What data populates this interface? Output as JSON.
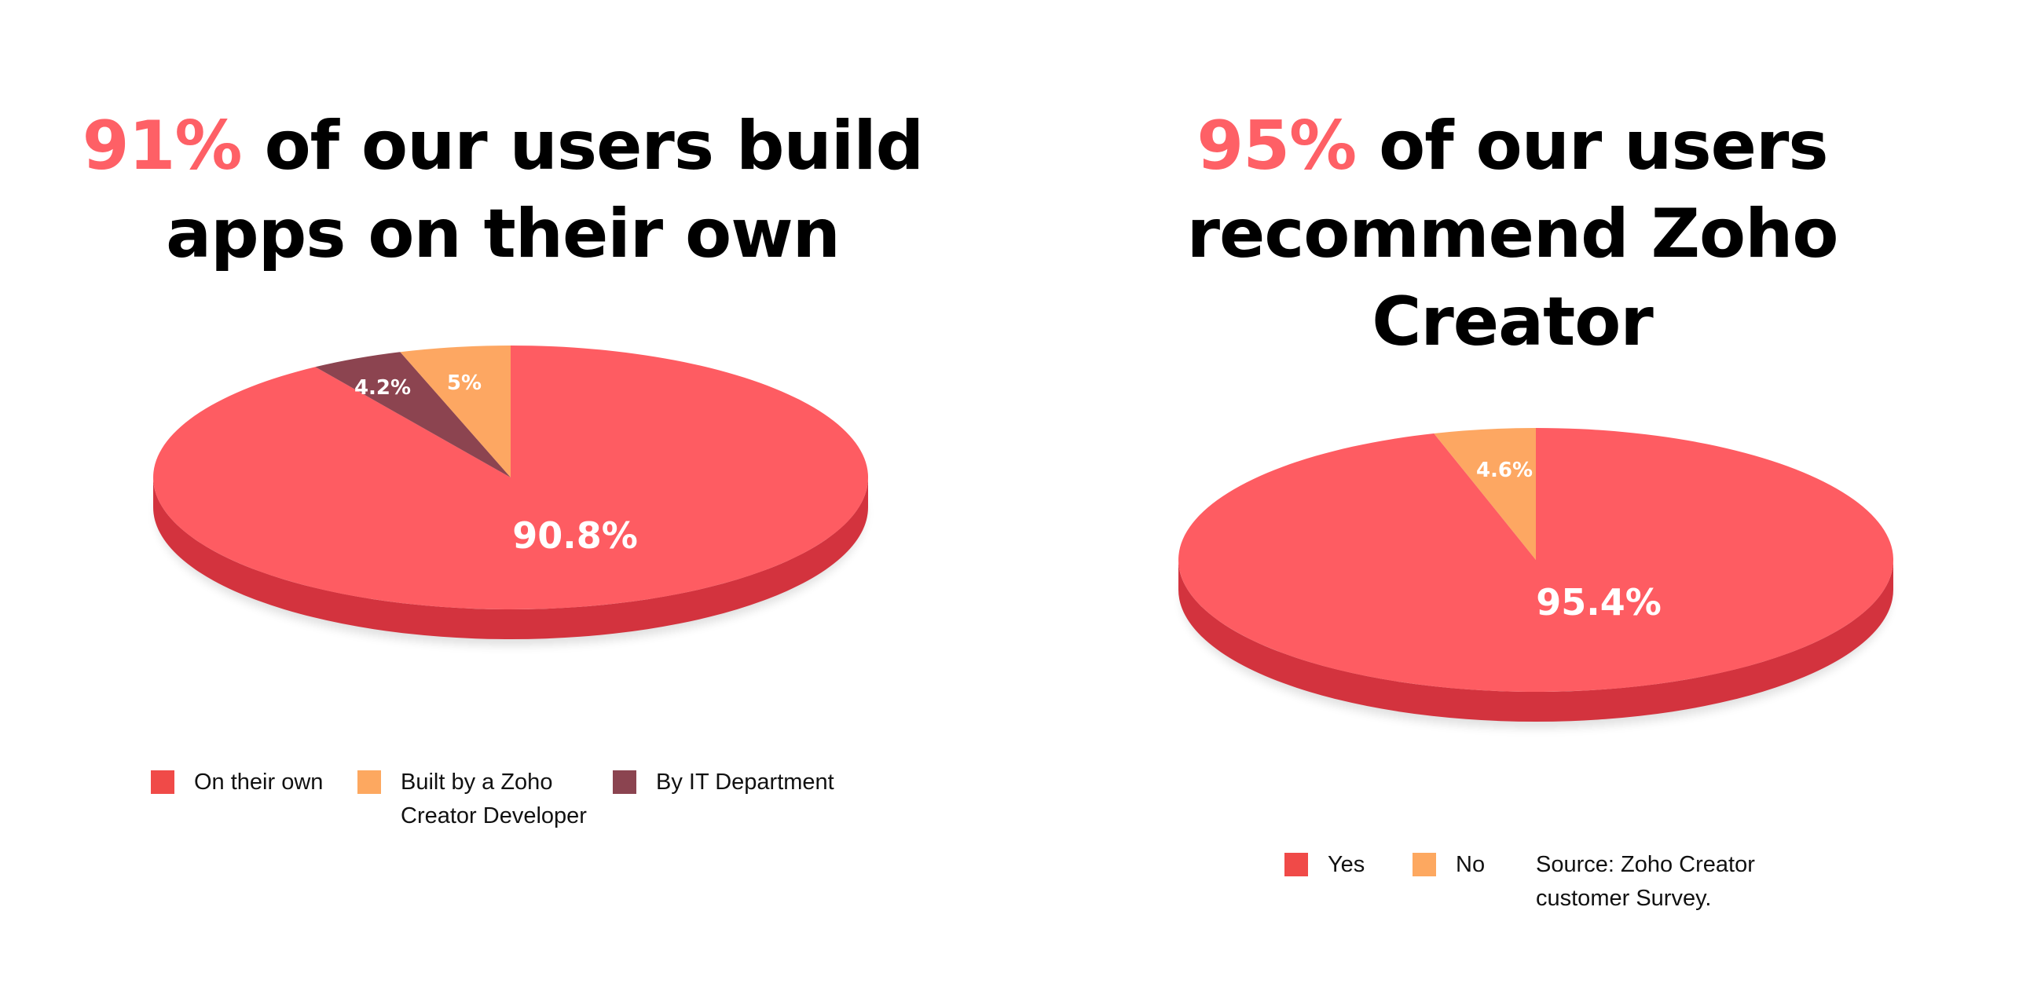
{
  "left_panel": {
    "headline_accent": "91%",
    "headline_line1": "of our users build",
    "headline_line2": "apps on their own"
  },
  "right_panel": {
    "headline_accent": "95%",
    "headline_line1": "of our users",
    "headline_line2": "recommend Zoho",
    "headline_line3": "Creator"
  },
  "source_note": {
    "line1": "Source: Zoho Creator",
    "line2": "customer Survey."
  },
  "colors": {
    "accent": "#fe6066",
    "pie_red": "#fe5c62",
    "pie_red_side": "#d3333e",
    "pie_orange": "#fda762",
    "pie_maroon": "#8c4450",
    "legend_red": "#f04a48",
    "legend_orange": "#fda860",
    "legend_maroon": "#8b4450"
  },
  "chart_data": [
    {
      "type": "pie",
      "title": "",
      "style": "3d",
      "slices": [
        {
          "name": "On their own",
          "value": 90.8,
          "label": "90.8%"
        },
        {
          "name": "By IT Department",
          "value": 4.2,
          "label": "4.2%"
        },
        {
          "name": "Built by a Zoho Creator Developer",
          "value": 5,
          "label": "5%"
        }
      ],
      "legend": {
        "position": "bottom",
        "entries": [
          {
            "line1": "On their own",
            "line2": "",
            "color": "#f04a48"
          },
          {
            "line1": "Built by a Zoho",
            "line2": "Creator Developer",
            "color": "#fda860"
          },
          {
            "line1": "By IT Department",
            "line2": "",
            "color": "#8b4450"
          }
        ]
      }
    },
    {
      "type": "pie",
      "title": "",
      "style": "3d",
      "slices": [
        {
          "name": "Yes",
          "value": 95.4,
          "label": "95.4%"
        },
        {
          "name": "No",
          "value": 4.6,
          "label": "4.6%"
        }
      ],
      "legend": {
        "position": "bottom",
        "entries": [
          {
            "line1": "Yes",
            "line2": "",
            "color": "#f04a48"
          },
          {
            "line1": "No",
            "line2": "",
            "color": "#fda860"
          }
        ]
      }
    }
  ]
}
